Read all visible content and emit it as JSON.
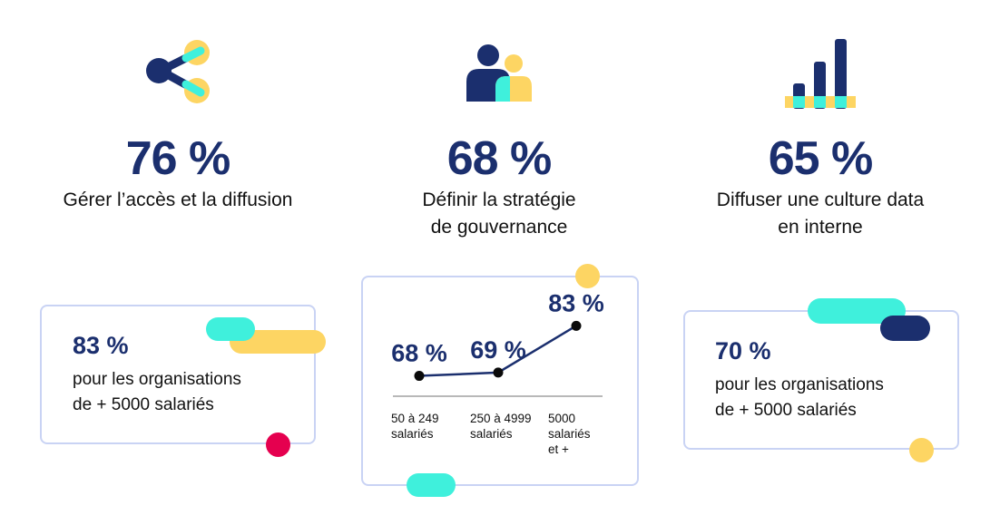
{
  "stats": [
    {
      "percent": "76 %",
      "label_line1": "Gérer l’accès et la diffusion",
      "label_line2": "",
      "icon": "share-icon"
    },
    {
      "percent": "68 %",
      "label_line1": "Définir la stratégie",
      "label_line2": "de gouvernance",
      "icon": "people-icon"
    },
    {
      "percent": "65 %",
      "label_line1": "Diffuser une culture data",
      "label_line2": "en interne",
      "icon": "bar-chart-icon"
    }
  ],
  "cards": {
    "left": {
      "percent": "83 %",
      "line1": "pour les organisations",
      "line2": "de + 5000 salariés"
    },
    "right": {
      "percent": "70 %",
      "line1": "pour les organisations",
      "line2": "de + 5000 salariés"
    }
  },
  "chart_data": {
    "type": "line",
    "categories": [
      "50 à 249 salariés",
      "250 à 4999 salariés",
      "5000 salariés et +"
    ],
    "category_lines": [
      [
        "50 à 249",
        "salariés"
      ],
      [
        "250 à 4999",
        "salariés"
      ],
      [
        "5000",
        "salariés",
        "et +"
      ]
    ],
    "values": [
      68,
      69,
      83
    ],
    "value_labels": [
      "68 %",
      "69 %",
      "83 %"
    ],
    "ylim": [
      60,
      85
    ],
    "title": "",
    "xlabel": "",
    "ylabel": ""
  },
  "colors": {
    "navy": "#1b2f6e",
    "yellow": "#fdd563",
    "cyan": "#3ff0dc",
    "pink": "#e5004f",
    "border": "#c9d3f4"
  }
}
